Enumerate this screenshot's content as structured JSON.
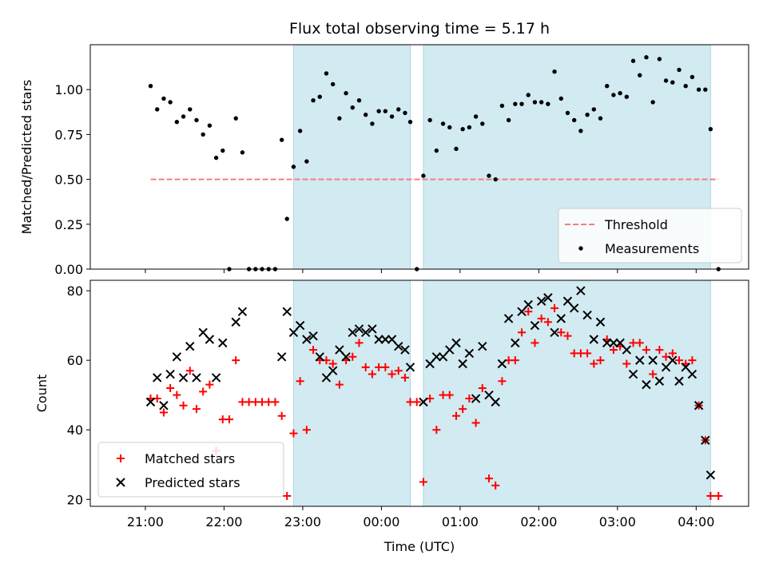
{
  "chart_data": {
    "type": "scatter",
    "title": "Flux total observing time = 5.17 h",
    "xlabel": "Time (UTC)",
    "x_tick_labels": [
      "21:00",
      "22:00",
      "23:00",
      "00:00",
      "01:00",
      "02:00",
      "03:00",
      "04:00"
    ],
    "shaded_intervals": [
      [
        "22:53",
        "00:22"
      ],
      [
        "00:32",
        "04:11"
      ]
    ],
    "shade_color": "#add8e6",
    "top_panel": {
      "ylabel": "Matched/Predicted stars",
      "ylim": [
        0,
        1.25
      ],
      "y_tick_labels": [
        "0.00",
        "0.25",
        "0.50",
        "0.75",
        "1.00"
      ],
      "threshold": {
        "name": "Threshold",
        "value": 0.5,
        "x_start": "21:04",
        "x_end": "04:17",
        "color": "#f08080",
        "style": "dashed"
      },
      "series": [
        {
          "name": "Measurements",
          "marker": "dot",
          "color": "#000000",
          "points": [
            [
              "21:04",
              1.02
            ],
            [
              "21:09",
              0.89
            ],
            [
              "21:14",
              0.95
            ],
            [
              "21:19",
              0.93
            ],
            [
              "21:24",
              0.82
            ],
            [
              "21:29",
              0.85
            ],
            [
              "21:34",
              0.89
            ],
            [
              "21:39",
              0.83
            ],
            [
              "21:44",
              0.75
            ],
            [
              "21:49",
              0.8
            ],
            [
              "21:54",
              0.62
            ],
            [
              "21:59",
              0.66
            ],
            [
              "22:04",
              0.0
            ],
            [
              "22:09",
              0.84
            ],
            [
              "22:14",
              0.65
            ],
            [
              "22:19",
              0.0
            ],
            [
              "22:24",
              0.0
            ],
            [
              "22:29",
              0.0
            ],
            [
              "22:34",
              0.0
            ],
            [
              "22:39",
              0.0
            ],
            [
              "22:44",
              0.72
            ],
            [
              "22:48",
              0.28
            ],
            [
              "22:53",
              0.57
            ],
            [
              "22:58",
              0.77
            ],
            [
              "23:03",
              0.6
            ],
            [
              "23:08",
              0.94
            ],
            [
              "23:13",
              0.96
            ],
            [
              "23:18",
              1.09
            ],
            [
              "23:23",
              1.03
            ],
            [
              "23:28",
              0.84
            ],
            [
              "23:33",
              0.98
            ],
            [
              "23:38",
              0.9
            ],
            [
              "23:43",
              0.94
            ],
            [
              "23:48",
              0.86
            ],
            [
              "23:53",
              0.81
            ],
            [
              "23:58",
              0.88
            ],
            [
              "00:03",
              0.88
            ],
            [
              "00:08",
              0.85
            ],
            [
              "00:13",
              0.89
            ],
            [
              "00:18",
              0.87
            ],
            [
              "00:22",
              0.82
            ],
            [
              "00:27",
              0.0
            ],
            [
              "00:32",
              0.52
            ],
            [
              "00:37",
              0.83
            ],
            [
              "00:42",
              0.66
            ],
            [
              "00:47",
              0.81
            ],
            [
              "00:52",
              0.79
            ],
            [
              "00:57",
              0.67
            ],
            [
              "01:02",
              0.78
            ],
            [
              "01:07",
              0.79
            ],
            [
              "01:12",
              0.85
            ],
            [
              "01:17",
              0.81
            ],
            [
              "01:22",
              0.52
            ],
            [
              "01:27",
              0.5
            ],
            [
              "01:32",
              0.91
            ],
            [
              "01:37",
              0.83
            ],
            [
              "01:42",
              0.92
            ],
            [
              "01:47",
              0.92
            ],
            [
              "01:52",
              0.97
            ],
            [
              "01:57",
              0.93
            ],
            [
              "02:02",
              0.93
            ],
            [
              "02:07",
              0.92
            ],
            [
              "02:12",
              1.1
            ],
            [
              "02:17",
              0.95
            ],
            [
              "02:22",
              0.87
            ],
            [
              "02:27",
              0.83
            ],
            [
              "02:32",
              0.77
            ],
            [
              "02:37",
              0.86
            ],
            [
              "02:42",
              0.89
            ],
            [
              "02:47",
              0.84
            ],
            [
              "02:52",
              1.02
            ],
            [
              "02:57",
              0.97
            ],
            [
              "03:02",
              0.98
            ],
            [
              "03:07",
              0.96
            ],
            [
              "03:12",
              1.16
            ],
            [
              "03:17",
              1.08
            ],
            [
              "03:22",
              1.18
            ],
            [
              "03:27",
              0.93
            ],
            [
              "03:32",
              1.17
            ],
            [
              "03:37",
              1.05
            ],
            [
              "03:42",
              1.04
            ],
            [
              "03:47",
              1.11
            ],
            [
              "03:52",
              1.02
            ],
            [
              "03:57",
              1.07
            ],
            [
              "04:02",
              1.0
            ],
            [
              "04:07",
              1.0
            ],
            [
              "04:11",
              0.78
            ],
            [
              "04:17",
              0.0
            ]
          ]
        }
      ],
      "legend_position": "lower right"
    },
    "bottom_panel": {
      "ylabel": "Count",
      "ylim": [
        18,
        83
      ],
      "y_tick_labels": [
        "20",
        "40",
        "60",
        "80"
      ],
      "series": [
        {
          "name": "Matched stars",
          "marker": "plus",
          "color": "#ff0000",
          "points": [
            [
              "21:04",
              49
            ],
            [
              "21:09",
              49
            ],
            [
              "21:14",
              45
            ],
            [
              "21:19",
              52
            ],
            [
              "21:24",
              50
            ],
            [
              "21:29",
              47
            ],
            [
              "21:34",
              57
            ],
            [
              "21:39",
              46
            ],
            [
              "21:44",
              51
            ],
            [
              "21:49",
              53
            ],
            [
              "21:54",
              34
            ],
            [
              "21:59",
              43
            ],
            [
              "22:04",
              43
            ],
            [
              "22:09",
              60
            ],
            [
              "22:14",
              48
            ],
            [
              "22:19",
              48
            ],
            [
              "22:24",
              48
            ],
            [
              "22:29",
              48
            ],
            [
              "22:34",
              48
            ],
            [
              "22:39",
              48
            ],
            [
              "22:44",
              44
            ],
            [
              "22:48",
              21
            ],
            [
              "22:53",
              39
            ],
            [
              "22:58",
              54
            ],
            [
              "23:03",
              40
            ],
            [
              "23:08",
              63
            ],
            [
              "23:13",
              60
            ],
            [
              "23:18",
              60
            ],
            [
              "23:23",
              59
            ],
            [
              "23:28",
              53
            ],
            [
              "23:33",
              60
            ],
            [
              "23:38",
              61
            ],
            [
              "23:43",
              65
            ],
            [
              "23:48",
              58
            ],
            [
              "23:53",
              56
            ],
            [
              "23:58",
              58
            ],
            [
              "00:03",
              58
            ],
            [
              "00:08",
              56
            ],
            [
              "00:13",
              57
            ],
            [
              "00:18",
              55
            ],
            [
              "00:22",
              48
            ],
            [
              "00:27",
              48
            ],
            [
              "00:32",
              25
            ],
            [
              "00:37",
              49
            ],
            [
              "00:42",
              40
            ],
            [
              "00:47",
              50
            ],
            [
              "00:52",
              50
            ],
            [
              "00:57",
              44
            ],
            [
              "01:02",
              46
            ],
            [
              "01:07",
              49
            ],
            [
              "01:12",
              42
            ],
            [
              "01:17",
              52
            ],
            [
              "01:22",
              26
            ],
            [
              "01:27",
              24
            ],
            [
              "01:32",
              54
            ],
            [
              "01:37",
              60
            ],
            [
              "01:42",
              60
            ],
            [
              "01:47",
              68
            ],
            [
              "01:52",
              74
            ],
            [
              "01:57",
              65
            ],
            [
              "02:02",
              72
            ],
            [
              "02:07",
              71
            ],
            [
              "02:12",
              75
            ],
            [
              "02:17",
              68
            ],
            [
              "02:22",
              67
            ],
            [
              "02:27",
              62
            ],
            [
              "02:32",
              62
            ],
            [
              "02:37",
              62
            ],
            [
              "02:42",
              59
            ],
            [
              "02:47",
              60
            ],
            [
              "02:52",
              66
            ],
            [
              "02:57",
              63
            ],
            [
              "03:02",
              64
            ],
            [
              "03:07",
              59
            ],
            [
              "03:12",
              65
            ],
            [
              "03:17",
              65
            ],
            [
              "03:22",
              63
            ],
            [
              "03:27",
              56
            ],
            [
              "03:32",
              63
            ],
            [
              "03:37",
              61
            ],
            [
              "03:42",
              62
            ],
            [
              "03:47",
              60
            ],
            [
              "03:52",
              59
            ],
            [
              "03:57",
              60
            ],
            [
              "04:02",
              47
            ],
            [
              "04:07",
              37
            ],
            [
              "04:11",
              21
            ],
            [
              "04:17",
              21
            ]
          ]
        },
        {
          "name": "Predicted stars",
          "marker": "x",
          "color": "#000000",
          "points": [
            [
              "21:04",
              48
            ],
            [
              "21:09",
              55
            ],
            [
              "21:14",
              47
            ],
            [
              "21:19",
              56
            ],
            [
              "21:24",
              61
            ],
            [
              "21:29",
              55
            ],
            [
              "21:34",
              64
            ],
            [
              "21:39",
              55
            ],
            [
              "21:44",
              68
            ],
            [
              "21:49",
              66
            ],
            [
              "21:54",
              55
            ],
            [
              "21:59",
              65
            ],
            [
              "22:09",
              71
            ],
            [
              "22:14",
              74
            ],
            [
              "22:44",
              61
            ],
            [
              "22:48",
              74
            ],
            [
              "22:53",
              68
            ],
            [
              "22:58",
              70
            ],
            [
              "23:03",
              66
            ],
            [
              "23:08",
              67
            ],
            [
              "23:13",
              61
            ],
            [
              "23:18",
              55
            ],
            [
              "23:23",
              57
            ],
            [
              "23:28",
              63
            ],
            [
              "23:33",
              61
            ],
            [
              "23:38",
              68
            ],
            [
              "23:43",
              69
            ],
            [
              "23:48",
              68
            ],
            [
              "23:53",
              69
            ],
            [
              "23:58",
              66
            ],
            [
              "00:03",
              66
            ],
            [
              "00:08",
              66
            ],
            [
              "00:13",
              64
            ],
            [
              "00:18",
              63
            ],
            [
              "00:22",
              58
            ],
            [
              "00:32",
              48
            ],
            [
              "00:37",
              59
            ],
            [
              "00:42",
              61
            ],
            [
              "00:47",
              61
            ],
            [
              "00:52",
              63
            ],
            [
              "00:57",
              65
            ],
            [
              "01:02",
              59
            ],
            [
              "01:07",
              62
            ],
            [
              "01:12",
              49
            ],
            [
              "01:17",
              64
            ],
            [
              "01:22",
              50
            ],
            [
              "01:27",
              48
            ],
            [
              "01:32",
              59
            ],
            [
              "01:37",
              72
            ],
            [
              "01:42",
              65
            ],
            [
              "01:47",
              74
            ],
            [
              "01:52",
              76
            ],
            [
              "01:57",
              70
            ],
            [
              "02:02",
              77
            ],
            [
              "02:07",
              78
            ],
            [
              "02:12",
              68
            ],
            [
              "02:17",
              72
            ],
            [
              "02:22",
              77
            ],
            [
              "02:27",
              75
            ],
            [
              "02:32",
              80
            ],
            [
              "02:37",
              73
            ],
            [
              "02:42",
              66
            ],
            [
              "02:47",
              71
            ],
            [
              "02:52",
              65
            ],
            [
              "02:57",
              65
            ],
            [
              "03:02",
              65
            ],
            [
              "03:07",
              63
            ],
            [
              "03:12",
              56
            ],
            [
              "03:17",
              60
            ],
            [
              "03:22",
              53
            ],
            [
              "03:27",
              60
            ],
            [
              "03:32",
              54
            ],
            [
              "03:37",
              58
            ],
            [
              "03:42",
              60
            ],
            [
              "03:47",
              54
            ],
            [
              "03:52",
              58
            ],
            [
              "03:57",
              56
            ],
            [
              "04:02",
              47
            ],
            [
              "04:07",
              37
            ],
            [
              "04:11",
              27
            ]
          ]
        }
      ],
      "legend_position": "lower left"
    }
  }
}
